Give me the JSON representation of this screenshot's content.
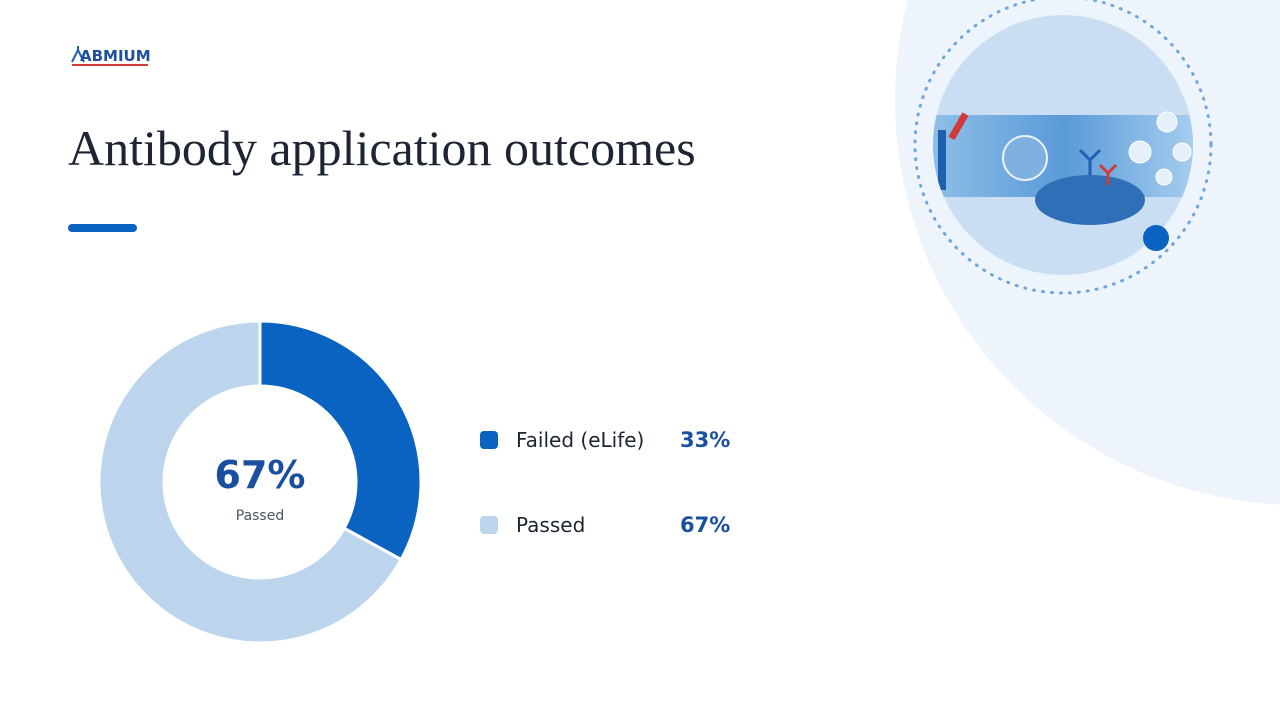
{
  "logo": "ABMIUM",
  "chart_data": {
    "type": "pie",
    "donut": true,
    "title": "Antibody application outcomes",
    "categories": [
      "Failed (eLife)",
      "Passed"
    ],
    "values": [
      33,
      67
    ],
    "value_labels": [
      "33%",
      "67%"
    ],
    "colors": [
      "#0a62c1",
      "#bcd4ec"
    ]
  }
}
